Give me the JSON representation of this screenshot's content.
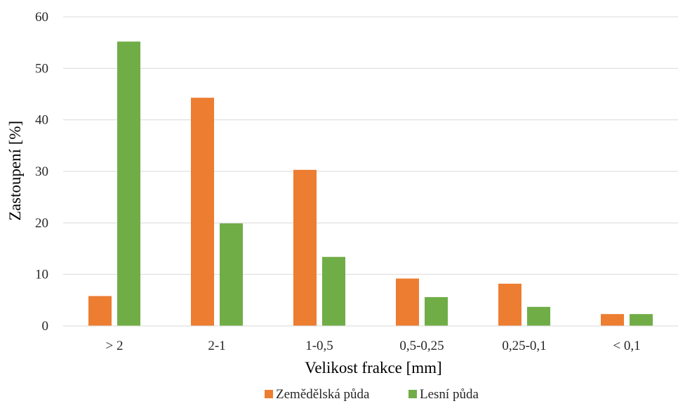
{
  "chart_data": {
    "type": "bar",
    "title": "",
    "xlabel": "Velikost frakce [mm]",
    "ylabel": "Zastoupení [%]",
    "categories": [
      "> 2",
      "2-1",
      "1-0,5",
      "0,5-0,25",
      "0,25-0,1",
      "< 0,1"
    ],
    "series": [
      {
        "name": "Zemědělská půda",
        "color": "#ED7D31",
        "values": [
          5.8,
          44.3,
          30.3,
          9.2,
          8.2,
          2.3
        ]
      },
      {
        "name": "Lesní půda",
        "color": "#70AD47",
        "values": [
          55.2,
          19.9,
          13.4,
          5.6,
          3.7,
          2.3
        ]
      }
    ],
    "ylim": [
      0,
      60
    ],
    "yticks": [
      0,
      10,
      20,
      30,
      40,
      50,
      60
    ],
    "grid": "horizontal",
    "legend": "bottom"
  }
}
